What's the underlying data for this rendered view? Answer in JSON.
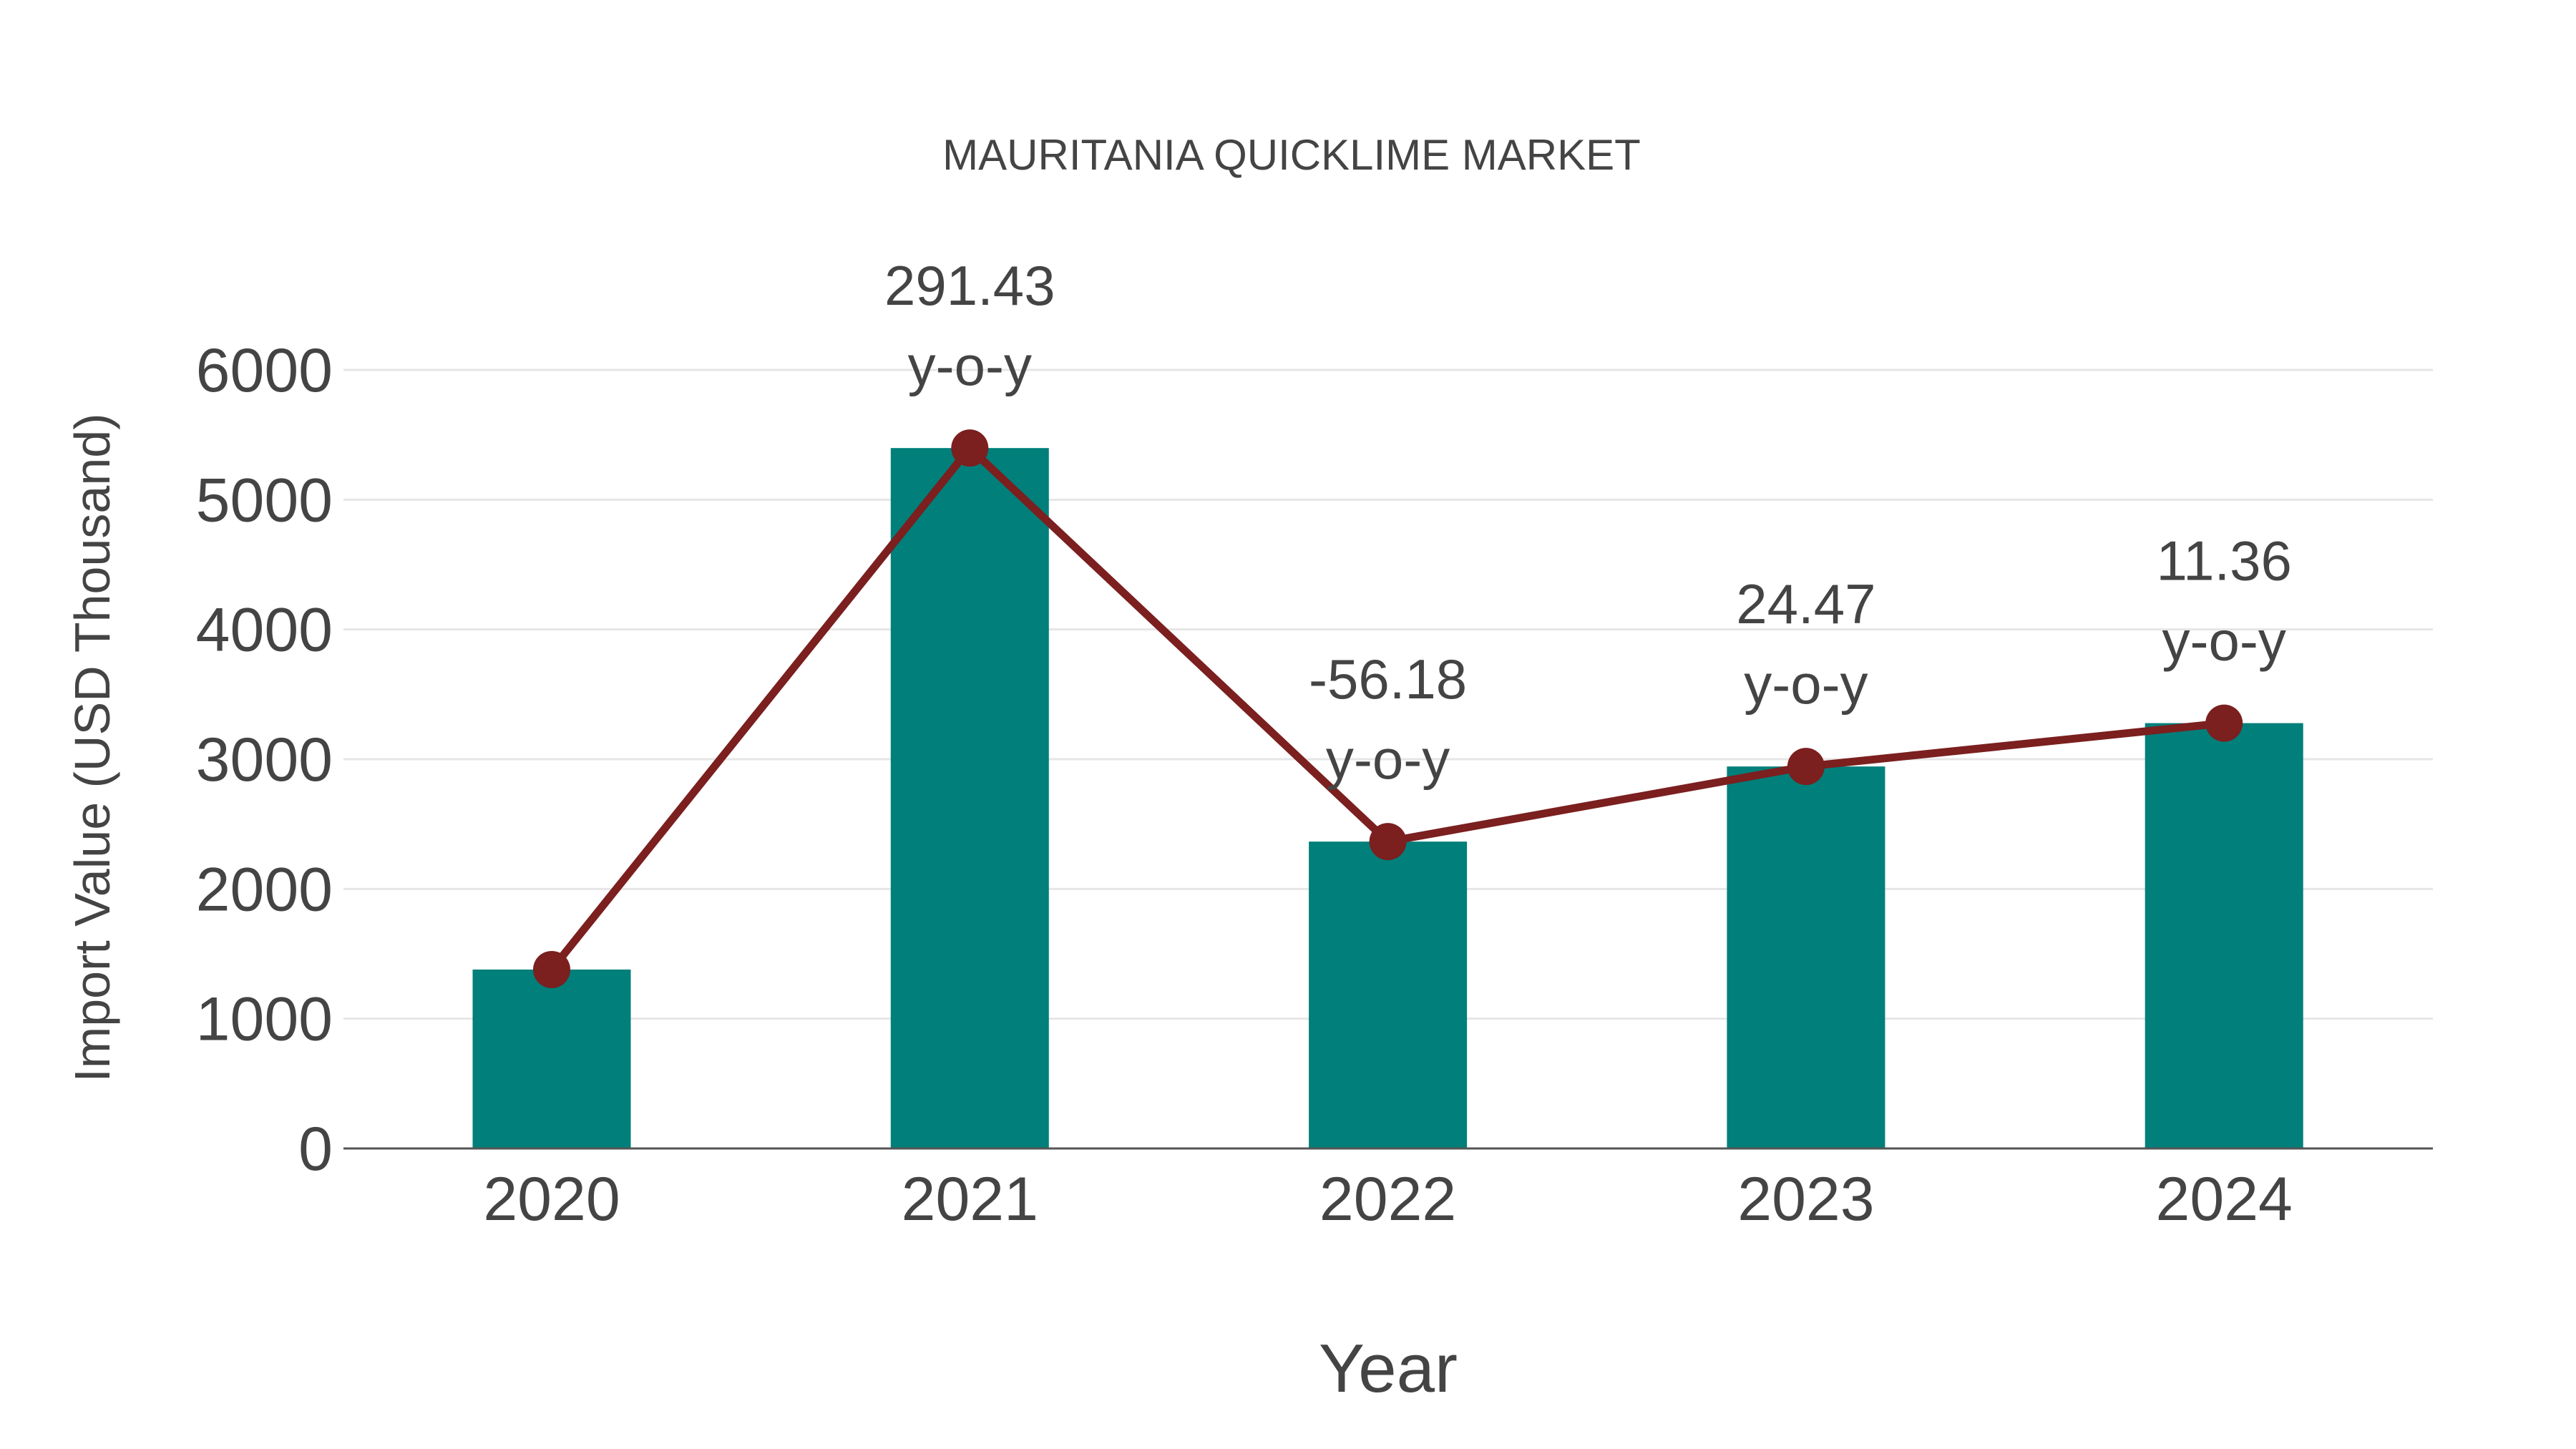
{
  "title": "MAURITANIA QUICKLIME MARKET",
  "colors": {
    "bar": "#007f7b",
    "line": "#7b1f1f",
    "grid": "#e6e6e6",
    "axis": "#555555",
    "text": "#444444",
    "background": "#ffffff"
  },
  "chart_data": {
    "type": "bar",
    "title": "MAURITANIA QUICKLIME MARKET",
    "xlabel": "Year",
    "ylabel": "Import Value (USD Thousand)",
    "categories": [
      "2020",
      "2021",
      "2022",
      "2023",
      "2024"
    ],
    "series": [
      {
        "name": "Import Value (bars)",
        "type": "bar",
        "values": [
          1379,
          5398,
          2365,
          2944,
          3278
        ]
      },
      {
        "name": "Import Value (line)",
        "type": "line",
        "values": [
          1379,
          5398,
          2365,
          2944,
          3278
        ]
      }
    ],
    "annotations": [
      {
        "category": "2021",
        "value": "291.43",
        "suffix": "y-o-y"
      },
      {
        "category": "2022",
        "value": "-56.18",
        "suffix": "y-o-y"
      },
      {
        "category": "2023",
        "value": "24.47",
        "suffix": "y-o-y"
      },
      {
        "category": "2024",
        "value": "11.36",
        "suffix": "y-o-y"
      }
    ],
    "yticks": [
      0,
      1000,
      2000,
      3000,
      4000,
      5000,
      6000
    ],
    "ylim": [
      0,
      6000
    ],
    "grid": true,
    "legend": "none"
  }
}
